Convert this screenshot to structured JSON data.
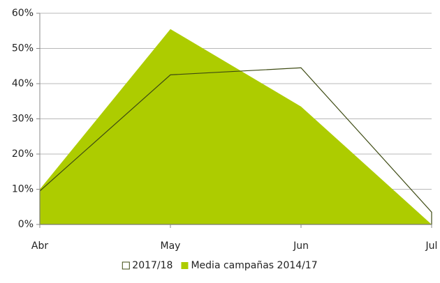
{
  "chart_data": {
    "type": "area",
    "categories": [
      "Abr",
      "May",
      "Jun",
      "Jul"
    ],
    "series": [
      {
        "name": "2017/18",
        "color": "#3d4a12",
        "fill": "none",
        "values": [
          9.5,
          42.5,
          44.5,
          3.5
        ]
      },
      {
        "name": "Media campañas 2014/17",
        "color": "#adcc00",
        "fill": "#adcc00",
        "values": [
          10,
          55.5,
          33.5,
          0
        ]
      }
    ],
    "ylim": [
      0,
      60
    ],
    "yticks": [
      {
        "value": 0,
        "label": "0%"
      },
      {
        "value": 10,
        "label": "10%"
      },
      {
        "value": 20,
        "label": "20%"
      },
      {
        "value": 30,
        "label": "30%"
      },
      {
        "value": 40,
        "label": "40%"
      },
      {
        "value": 50,
        "label": "50%"
      },
      {
        "value": 60,
        "label": "60%"
      }
    ],
    "grid": true,
    "legend": "bottom"
  }
}
